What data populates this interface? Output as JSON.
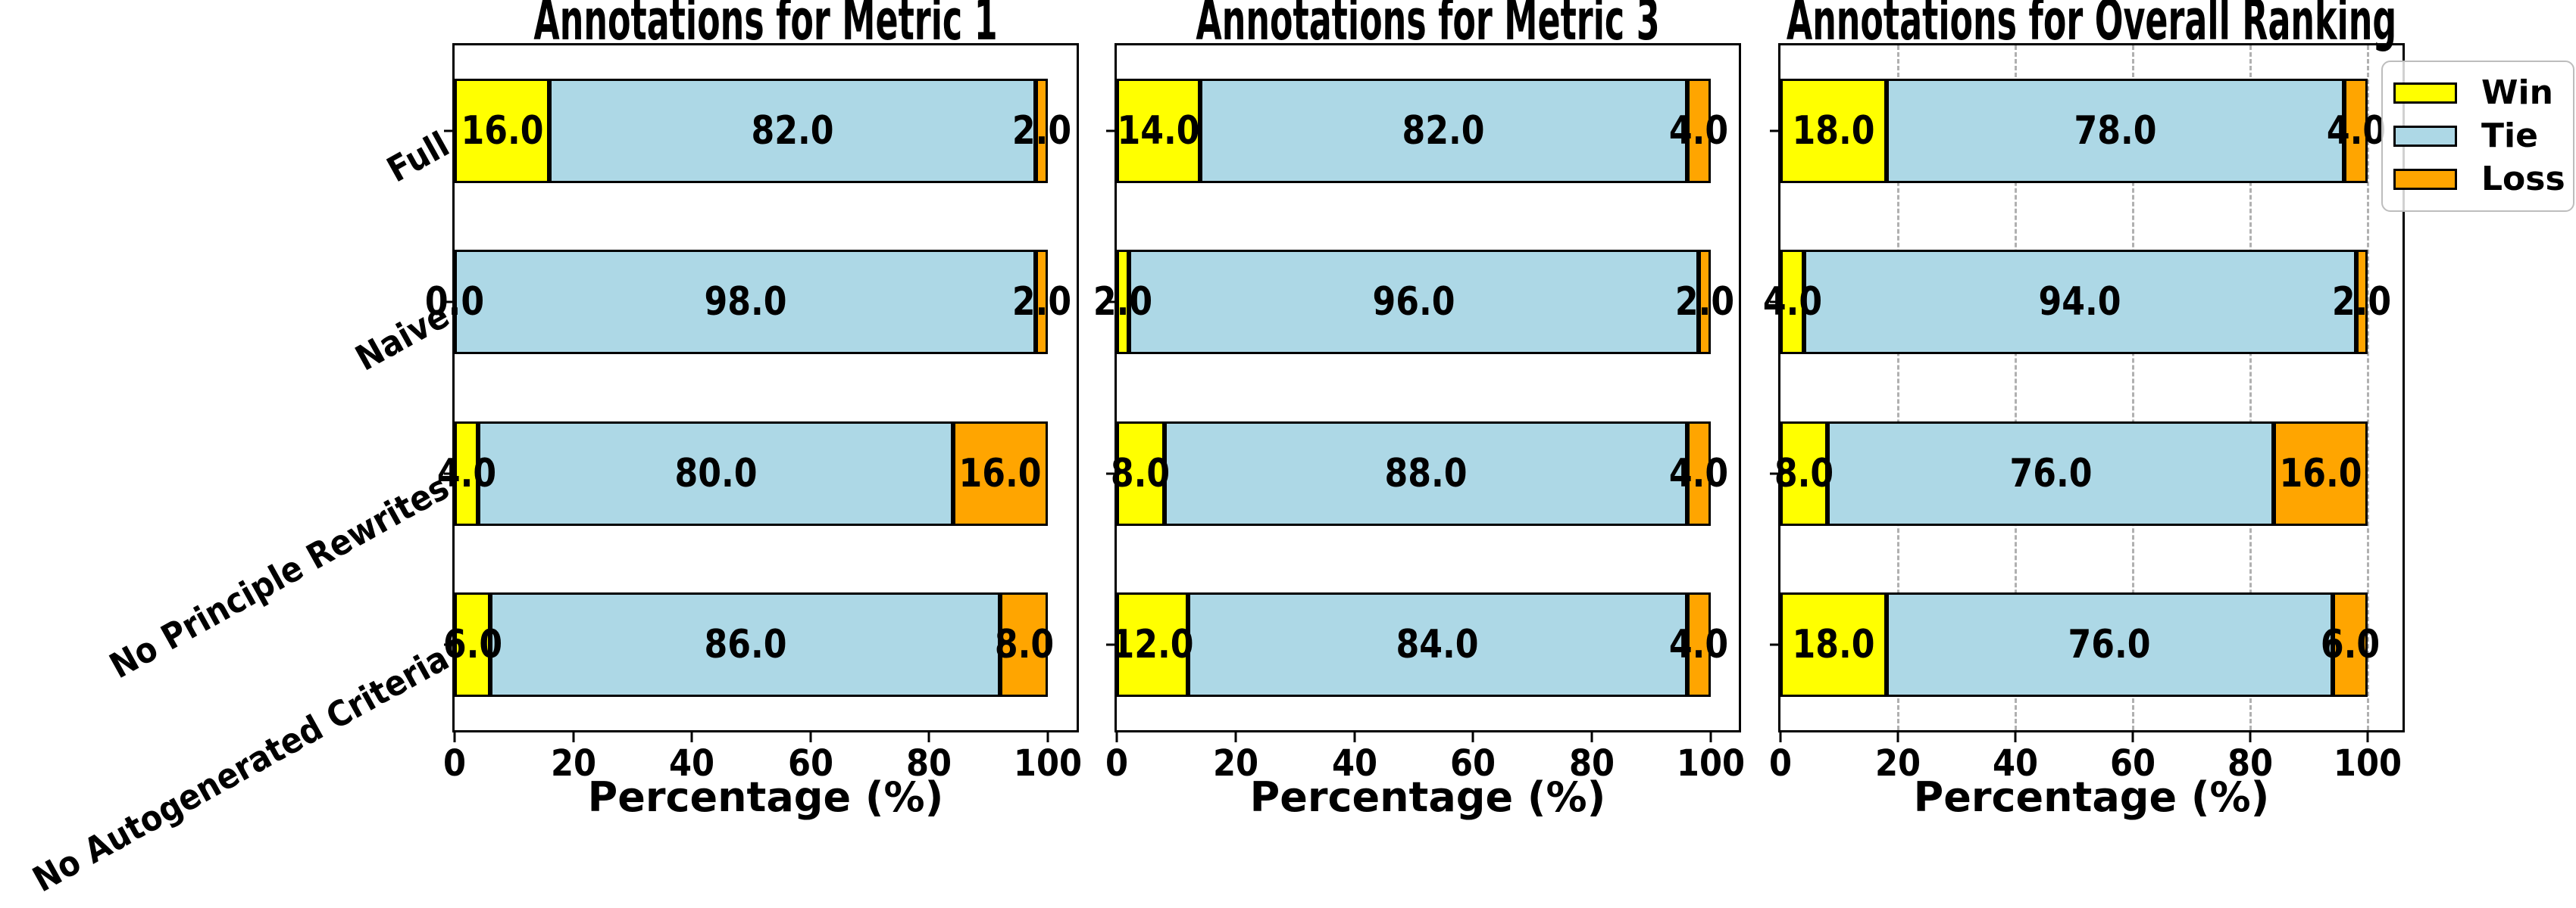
{
  "figure": {
    "background": "#ffffff"
  },
  "legend": {
    "entries": [
      {
        "label": "Win",
        "color": "#FFFF00"
      },
      {
        "label": "Tie",
        "color": "#ADD8E6"
      },
      {
        "label": "Loss",
        "color": "#FFA500"
      }
    ]
  },
  "chart_data": [
    {
      "type": "bar",
      "orientation": "horizontal",
      "stacked": true,
      "title": "Annotations for Metric 1",
      "xlabel": "Percentage (%)",
      "xlim": [
        0,
        105
      ],
      "xticks": [
        0,
        20,
        40,
        60,
        80,
        100
      ],
      "xtick_labels": [
        "0",
        "20",
        "40",
        "60",
        "80",
        "100"
      ],
      "grid": false,
      "show_category_labels": true,
      "categories": [
        "Full",
        "Naive",
        "No Principle Rewrites",
        "No Autogenerated Criteria"
      ],
      "series": [
        {
          "name": "Win",
          "color": "#FFFF00",
          "values": [
            16,
            0,
            4,
            6
          ],
          "labels": [
            "16.0",
            "0.0",
            "4.0",
            "6.0"
          ]
        },
        {
          "name": "Tie",
          "color": "#ADD8E6",
          "values": [
            82,
            98,
            80,
            86
          ],
          "labels": [
            "82.0",
            "98.0",
            "80.0",
            "86.0"
          ]
        },
        {
          "name": "Loss",
          "color": "#FFA500",
          "values": [
            2,
            2,
            16,
            8
          ],
          "labels": [
            "2.0",
            "2.0",
            "16.0",
            "8.0"
          ]
        }
      ]
    },
    {
      "type": "bar",
      "orientation": "horizontal",
      "stacked": true,
      "title": "Annotations for Metric 3",
      "xlabel": "Percentage (%)",
      "xlim": [
        0,
        105
      ],
      "xticks": [
        0,
        20,
        40,
        60,
        80,
        100
      ],
      "xtick_labels": [
        "0",
        "20",
        "40",
        "60",
        "80",
        "100"
      ],
      "grid": false,
      "show_category_labels": false,
      "categories": [
        "Full",
        "Naive",
        "No Principle Rewrites",
        "No Autogenerated Criteria"
      ],
      "series": [
        {
          "name": "Win",
          "color": "#FFFF00",
          "values": [
            14,
            2,
            8,
            12
          ],
          "labels": [
            "14.0",
            "2.0",
            "8.0",
            "12.0"
          ]
        },
        {
          "name": "Tie",
          "color": "#ADD8E6",
          "values": [
            82,
            96,
            88,
            84
          ],
          "labels": [
            "82.0",
            "96.0",
            "88.0",
            "84.0"
          ]
        },
        {
          "name": "Loss",
          "color": "#FFA500",
          "values": [
            4,
            2,
            4,
            4
          ],
          "labels": [
            "4.0",
            "2.0",
            "4.0",
            "4.0"
          ]
        }
      ]
    },
    {
      "type": "bar",
      "orientation": "horizontal",
      "stacked": true,
      "title": "Annotations for Overall Ranking",
      "xlabel": "Percentage (%)",
      "xlim": [
        0,
        106
      ],
      "xticks": [
        0,
        20,
        40,
        60,
        80,
        100
      ],
      "xtick_labels": [
        "0",
        "20",
        "40",
        "60",
        "80",
        "100"
      ],
      "grid": true,
      "show_category_labels": false,
      "categories": [
        "Full",
        "Naive",
        "No Principle Rewrites",
        "No Autogenerated Criteria"
      ],
      "series": [
        {
          "name": "Win",
          "color": "#FFFF00",
          "values": [
            18,
            4,
            8,
            18
          ],
          "labels": [
            "18.0",
            "4.0",
            "8.0",
            "18.0"
          ]
        },
        {
          "name": "Tie",
          "color": "#ADD8E6",
          "values": [
            78,
            94,
            76,
            76
          ],
          "labels": [
            "78.0",
            "94.0",
            "76.0",
            "76.0"
          ]
        },
        {
          "name": "Loss",
          "color": "#FFA500",
          "values": [
            4,
            2,
            16,
            6
          ],
          "labels": [
            "4.0",
            "2.0",
            "16.0",
            "6.0"
          ]
        }
      ]
    }
  ]
}
